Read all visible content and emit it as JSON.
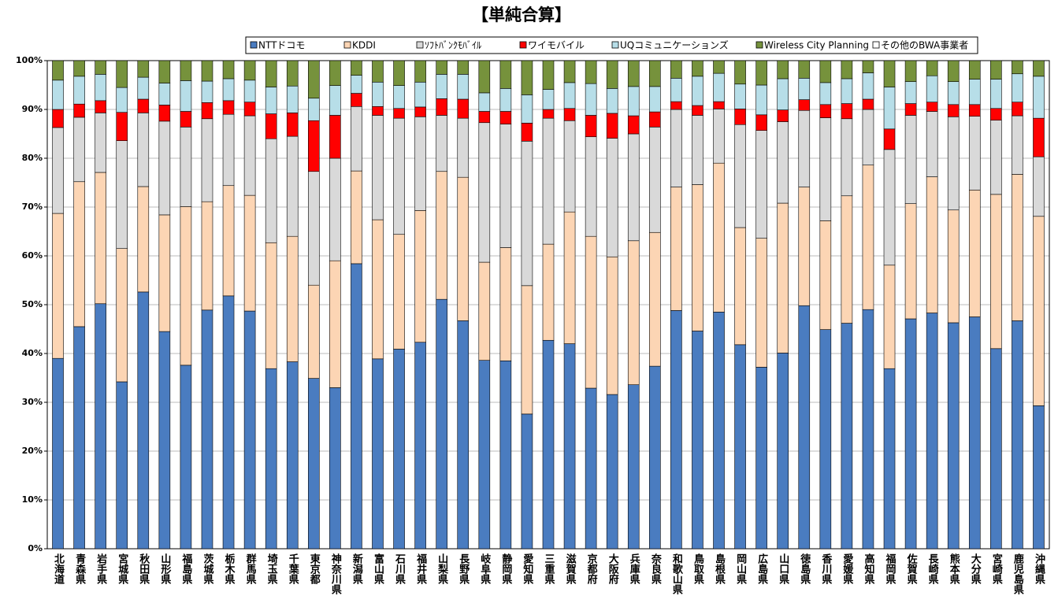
{
  "chart_data": {
    "type": "stacked_bar",
    "title": "【単純合算】",
    "categories": [
      "北海道",
      "青森県",
      "岩手県",
      "宮城県",
      "秋田県",
      "山形県",
      "福島県",
      "茨城県",
      "栃木県",
      "群馬県",
      "埼玉県",
      "千葉県",
      "東京都",
      "神奈川県",
      "新潟県",
      "富山県",
      "石川県",
      "福井県",
      "山梨県",
      "長野県",
      "岐阜県",
      "静岡県",
      "愛知県",
      "三重県",
      "滋賀県",
      "京都府",
      "大阪府",
      "兵庫県",
      "奈良県",
      "和歌山県",
      "鳥取県",
      "島根県",
      "岡山県",
      "広島県",
      "山口県",
      "徳島県",
      "香川県",
      "愛媛県",
      "高知県",
      "福岡県",
      "佐賀県",
      "長崎県",
      "熊本県",
      "大分県",
      "宮崎県",
      "鹿児島県",
      "沖縄県"
    ],
    "series": [
      {
        "name": "NTTドコモ",
        "color": "#4a7cc0",
        "values": [
          39,
          45.5,
          50.2,
          34.2,
          52.6,
          44.5,
          37.6,
          48.9,
          51.8,
          48.7,
          36.9,
          38.3,
          34.9,
          33,
          58.4,
          38.9,
          40.9,
          42.3,
          51.1,
          46.7,
          38.6,
          38.5,
          27.6,
          42.7,
          42,
          32.9,
          31.6,
          33.6,
          37.4,
          48.8,
          44.6,
          48.5,
          41.8,
          37.2,
          40.1,
          49.8,
          44.9,
          46.2,
          49,
          36.9,
          47.1,
          48.3,
          46.3,
          47.5,
          41,
          46.7,
          29.3
        ]
      },
      {
        "name": "KDDI",
        "color": "#fcd5b4",
        "values": [
          29.7,
          29.7,
          26.9,
          27.3,
          21.6,
          23.9,
          32.5,
          22.2,
          22.6,
          23.7,
          25.8,
          25.7,
          19.1,
          26,
          19,
          28.5,
          23.5,
          27,
          26.2,
          29.4,
          20.1,
          23.2,
          26.3,
          19.7,
          27,
          31.1,
          28.2,
          29.5,
          27.4,
          25.3,
          30,
          30.5,
          24,
          26.4,
          30.7,
          24.3,
          22.3,
          26.1,
          29.6,
          21.2,
          23.6,
          27.9,
          23.1,
          26,
          31.6,
          30,
          38.8
        ]
      },
      {
        "name": "ｿﾌﾄﾊﾞﾝｸﾓﾊﾞｲﾙ",
        "color": "#d9d9d9",
        "values": [
          17.6,
          13.2,
          12.2,
          22.1,
          15.1,
          19.2,
          16.3,
          17,
          14.6,
          16.3,
          21.3,
          20.5,
          23.3,
          21,
          13.2,
          21.4,
          23.8,
          19.2,
          11.5,
          12.1,
          28.6,
          25.3,
          29.6,
          25.8,
          18.7,
          20.4,
          24.3,
          21.9,
          21.6,
          15.9,
          14.2,
          11.1,
          21.1,
          22.1,
          16.7,
          15.7,
          21.1,
          15.8,
          11.4,
          23.7,
          18.1,
          13.4,
          19.1,
          15.1,
          15.2,
          12,
          12.2
        ]
      },
      {
        "name": "ワイモバイル",
        "color": "#ff0000",
        "values": [
          3.7,
          2.7,
          2.5,
          5.8,
          2.8,
          3.3,
          3.2,
          3.3,
          2.8,
          2.8,
          5.1,
          4.8,
          10.4,
          8.8,
          2.7,
          1.8,
          2,
          2,
          3.4,
          3.9,
          2.3,
          2.6,
          3.7,
          1.8,
          2.5,
          4.4,
          5.1,
          3.7,
          3.1,
          1.6,
          2,
          1.5,
          3.2,
          3.2,
          2.4,
          2.2,
          2.7,
          3.1,
          2.1,
          4.2,
          2.4,
          1.9,
          2.5,
          2.4,
          2.4,
          2.8,
          7.9
        ]
      },
      {
        "name": "UQコミュニケーションズ",
        "color": "#b7dee8",
        "values": [
          6,
          5.7,
          5.4,
          5.1,
          4.5,
          4.5,
          6.3,
          4.4,
          4.5,
          4.5,
          5.5,
          5.5,
          4.6,
          6.1,
          3.7,
          5,
          4.7,
          5.1,
          5,
          5.1,
          3.8,
          4.7,
          5.8,
          4.1,
          5.3,
          6.5,
          5.1,
          6,
          5.2,
          4.8,
          6,
          5.8,
          5.1,
          6.1,
          6.4,
          4.4,
          4.5,
          5.1,
          5.4,
          8.6,
          4.5,
          5.4,
          4.7,
          5.2,
          6,
          5.8,
          8.6
        ]
      },
      {
        "name": "Wireless City Planning",
        "color": "#76923c",
        "values": [
          4,
          3.2,
          2.8,
          5.5,
          3.4,
          4.6,
          4.1,
          4.2,
          3.7,
          4,
          5.4,
          5.2,
          7.7,
          5.1,
          3,
          4.4,
          5.1,
          4.4,
          2.8,
          2.8,
          6.6,
          5.7,
          7,
          5.9,
          4.5,
          4.7,
          5.7,
          5.3,
          5.3,
          3.6,
          3.2,
          2.6,
          4.8,
          5,
          3.7,
          3.6,
          4.5,
          3.7,
          2.5,
          5.4,
          4.3,
          3.1,
          4.3,
          3.8,
          3.8,
          2.7,
          3.2
        ]
      },
      {
        "name": "その他のBWA事業者",
        "color": "#ffffff",
        "values": [
          0,
          0,
          0,
          0,
          0,
          0,
          0,
          0,
          0,
          0,
          0,
          0,
          0,
          0,
          0,
          0,
          0,
          0,
          0,
          0,
          0,
          0,
          0,
          0,
          0,
          0,
          0,
          0,
          0,
          0,
          0,
          0,
          0,
          0,
          0,
          0,
          0,
          0,
          0,
          0,
          0,
          0,
          0,
          0,
          0,
          0,
          0
        ]
      }
    ],
    "ylim": [
      0,
      100
    ],
    "yticks": [
      {
        "value": 0,
        "label": "0%"
      },
      {
        "value": 10,
        "label": "10%"
      },
      {
        "value": 20,
        "label": "20%"
      },
      {
        "value": 30,
        "label": "30%"
      },
      {
        "value": 40,
        "label": "40%"
      },
      {
        "value": 50,
        "label": "50%"
      },
      {
        "value": 60,
        "label": "60%"
      },
      {
        "value": 70,
        "label": "70%"
      },
      {
        "value": 80,
        "label": "80%"
      },
      {
        "value": 90,
        "label": "90%"
      },
      {
        "value": 100,
        "label": "100%"
      }
    ],
    "grid": true
  }
}
